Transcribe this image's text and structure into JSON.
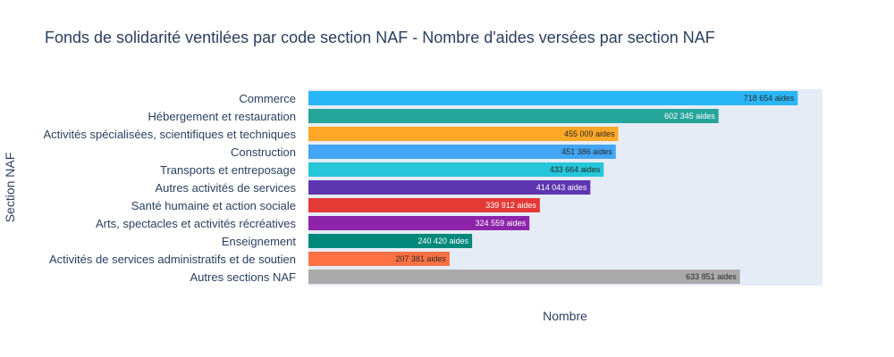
{
  "chart_data": {
    "type": "bar",
    "orientation": "horizontal",
    "title": "Fonds de solidarité ventilées par code section NAF - Nombre d'aides  versées par section NAF",
    "xlabel": "Nombre",
    "ylabel": "Section NAF",
    "xlim": [
      0,
      755000
    ],
    "grid": false,
    "categories": [
      "Commerce",
      "Hébergement et restauration",
      "Activités spécialisées, scientifiques et techniques",
      "Construction",
      "Transports et entreposage",
      "Autres activités de services",
      "Santé humaine et action sociale",
      "Arts, spectacles et activités récréatives",
      "Enseignement",
      "Activités de services administratifs et de soutien",
      "Autres sections NAF"
    ],
    "values": [
      718654,
      602345,
      455009,
      451386,
      433664,
      414043,
      339912,
      324559,
      240420,
      207381,
      633851
    ],
    "labels": [
      "718 654 aides",
      "602 345 aides",
      "455 009 aides",
      "451 386 aides",
      "433 664 aides",
      "414 043 aides",
      "339 912 aides",
      "324 559 aides",
      "240 420 aides",
      "207 381 aides",
      "633 851 aides"
    ],
    "colors": [
      "#29b6f6",
      "#26a69a",
      "#ffa726",
      "#42a5f5",
      "#26c6da",
      "#5e35b1",
      "#e53935",
      "#8e24aa",
      "#00897b",
      "#ff7043",
      "#aaaaaa"
    ],
    "label_colors": [
      "#2a2a2a",
      "#ffffff",
      "#2a2a2a",
      "#2a2a2a",
      "#2a2a2a",
      "#ffffff",
      "#ffffff",
      "#ffffff",
      "#ffffff",
      "#2a2a2a",
      "#2a2a2a"
    ],
    "plot_background": "#e5ecf6",
    "text_color": "#2a3f5f"
  }
}
